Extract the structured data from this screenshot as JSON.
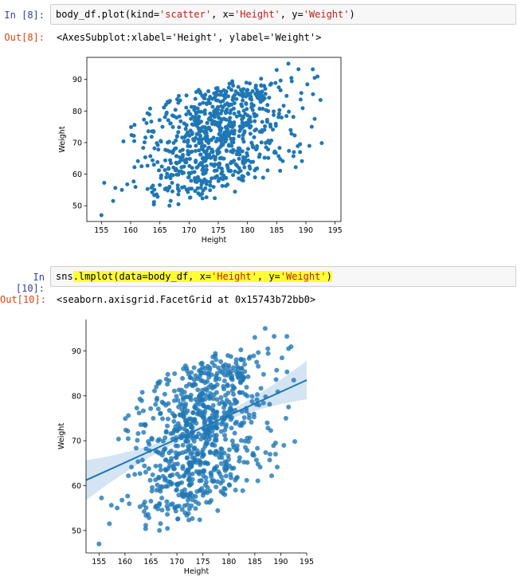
{
  "cells": [
    {
      "in_prompt": "In [8]:",
      "out_prompt": "Out[8]:",
      "code": {
        "prefix": "body_df.plot(kind=",
        "s1": "'scatter'",
        "mid1": ", x=",
        "s2": "'Height'",
        "mid2": ", y=",
        "s3": "'Weight'",
        "suffix": ")"
      },
      "output_text": "<AxesSubplot:xlabel='Height', ylabel='Weight'>"
    },
    {
      "in_prompt": "In [10]:",
      "out_prompt": "Out[10]:",
      "code": {
        "prefix": "sns",
        "h1": ".lmplot(data=body_df, x=",
        "s1": "'Height'",
        "mid1": ", y=",
        "s2": "'Weight'",
        "suffix": ")"
      },
      "output_text": "<seaborn.axisgrid.FacetGrid at 0x15743b72bb0>"
    }
  ],
  "colors": {
    "point": "#1f77b4",
    "ci_band": "#c6dbef",
    "code_string": "#ba2121",
    "highlight": "#ffff33"
  },
  "chart_data": [
    {
      "type": "scatter",
      "xlabel": "Height",
      "ylabel": "Weight",
      "xticks": [
        155,
        160,
        165,
        170,
        175,
        180,
        185,
        190,
        195
      ],
      "yticks": [
        50,
        60,
        70,
        80,
        90
      ],
      "xlim": [
        152.5,
        196
      ],
      "ylim": [
        45,
        97
      ],
      "grid": false,
      "point_count": 800,
      "x_range": [
        155,
        193
      ],
      "y_range": [
        47,
        95
      ]
    },
    {
      "type": "scatter",
      "xlabel": "Height",
      "ylabel": "Weight",
      "xticks": [
        155,
        160,
        165,
        170,
        175,
        180,
        185,
        190,
        195
      ],
      "yticks": [
        50,
        60,
        70,
        80,
        90
      ],
      "xlim": [
        152.5,
        195
      ],
      "ylim": [
        45,
        97
      ],
      "grid": false,
      "point_count": 800,
      "x_range": [
        155,
        193
      ],
      "y_range": [
        47,
        95
      ],
      "regression_line": {
        "x": [
          152.5,
          195
        ],
        "y": [
          61.2,
          83.5
        ]
      }
    }
  ]
}
